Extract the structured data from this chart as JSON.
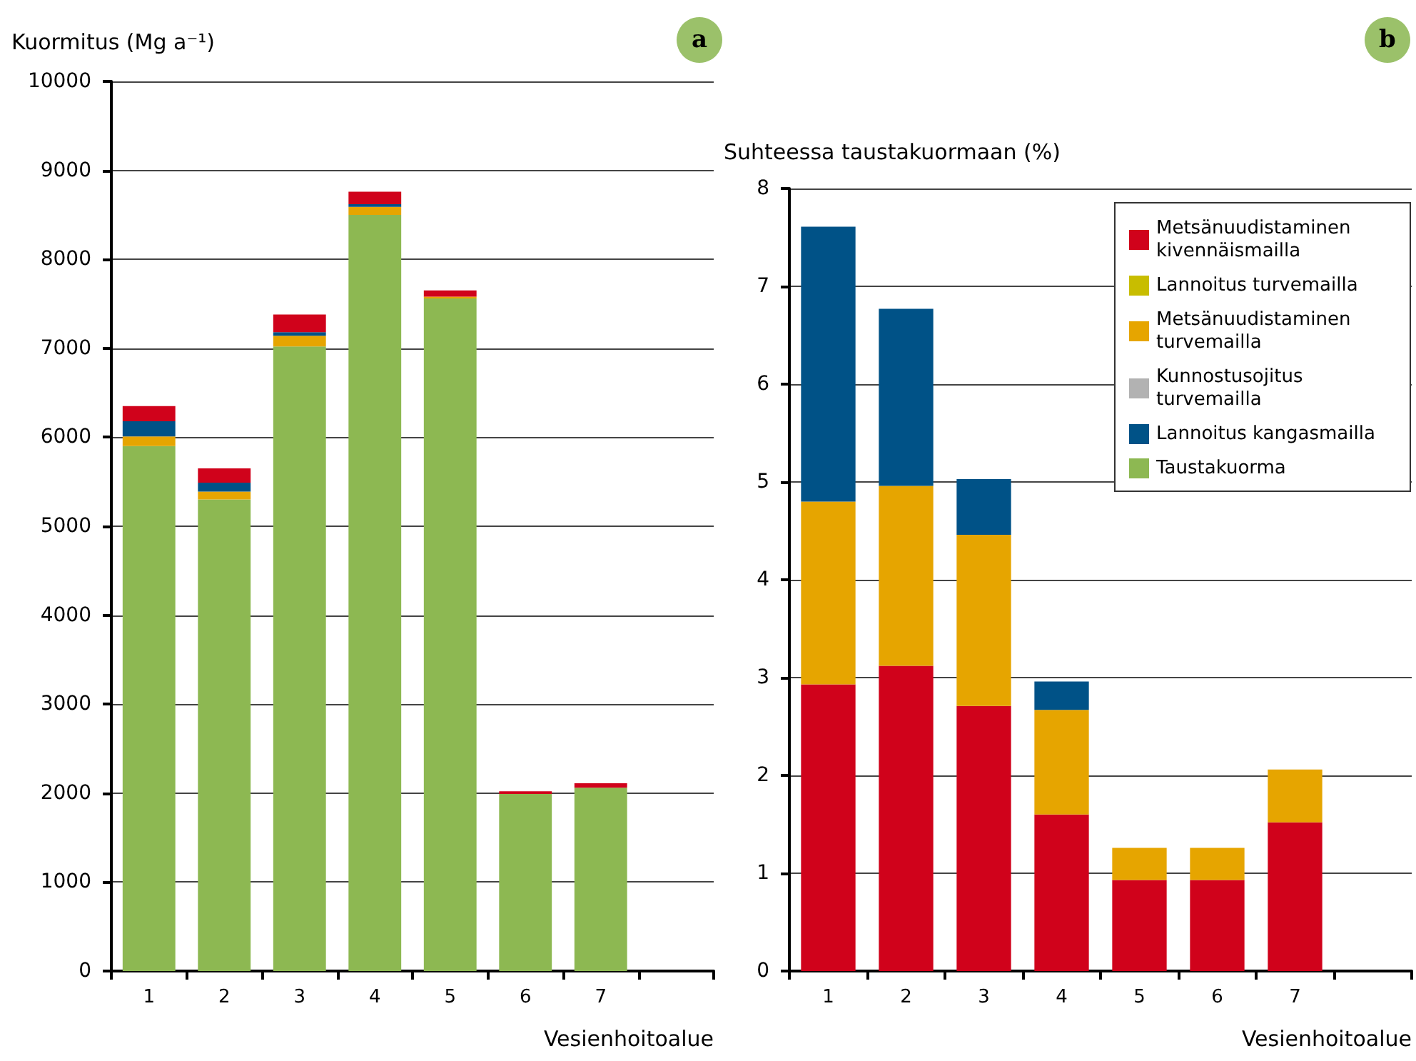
{
  "chart_data": [
    {
      "type": "bar",
      "stacked": true,
      "ylabel": "Kuormitus (Mg a⁻¹)",
      "xlabel": "Vesienhoitoalue",
      "annotations": [
        "a"
      ],
      "categories": [
        "1",
        "2",
        "3",
        "4",
        "5",
        "6",
        "7",
        null
      ],
      "ylim": [
        0,
        10000
      ],
      "yticks": [
        0,
        1000,
        2000,
        3000,
        4000,
        5000,
        6000,
        7000,
        8000,
        9000,
        10000
      ],
      "grid": "y",
      "legend": false,
      "series": [
        {
          "color": "#8db852",
          "values": [
            5900,
            5300,
            7020,
            8500,
            7560,
            1990,
            2060,
            null
          ]
        },
        {
          "color": "#e6a500",
          "values": [
            110,
            90,
            120,
            90,
            20,
            0,
            0,
            null
          ]
        },
        {
          "color": "#b2b2b2",
          "values": [
            0,
            0,
            0,
            0,
            0,
            0,
            0,
            null
          ]
        },
        {
          "color": "#005287",
          "values": [
            170,
            100,
            40,
            30,
            0,
            0,
            0,
            null
          ]
        },
        {
          "color": "#c8bd00",
          "values": [
            0,
            0,
            0,
            0,
            0,
            0,
            0,
            null
          ]
        },
        {
          "color": "#d0021b",
          "values": [
            170,
            160,
            200,
            140,
            70,
            30,
            50,
            null
          ]
        }
      ]
    },
    {
      "type": "bar",
      "stacked": true,
      "ylabel": "Suhteessa taustakuormaan (%)",
      "xlabel": "Vesienhoitoalue",
      "annotations": [
        "b"
      ],
      "categories": [
        "1",
        "2",
        "3",
        "4",
        "5",
        "6",
        "7",
        null
      ],
      "ylim": [
        0,
        8
      ],
      "yticks": [
        0,
        1,
        2,
        3,
        4,
        5,
        6,
        7,
        8
      ],
      "grid": "y",
      "legend": "top right",
      "series": [
        {
          "name": "Metsänuudistaminen kivennäismailla",
          "color": "#d0021b",
          "values": [
            2.93,
            3.12,
            2.71,
            1.6,
            0.93,
            0.93,
            1.52,
            null
          ]
        },
        {
          "name": "Lannoitus turvemailla",
          "color": "#c8bd00",
          "values": [
            0,
            0,
            0,
            0,
            0,
            0,
            0,
            null
          ]
        },
        {
          "name": "Metsänuudistaminen turvemailla",
          "color": "#e6a500",
          "values": [
            1.87,
            1.84,
            1.75,
            1.07,
            0.33,
            0.33,
            0.54,
            null
          ]
        },
        {
          "name": "Kunnostusojitus turvemailla",
          "color": "#b2b2b2",
          "values": [
            0,
            0,
            0,
            0,
            0,
            0,
            0,
            null
          ]
        },
        {
          "name": "Lannoitus kangasmailla",
          "color": "#005287",
          "values": [
            2.81,
            1.81,
            0.57,
            0.29,
            0,
            0,
            0,
            null
          ]
        },
        {
          "name": "Taustakuorma",
          "color": "#8db852",
          "values": [
            null,
            null,
            null,
            null,
            null,
            null,
            null,
            null
          ]
        }
      ]
    }
  ]
}
